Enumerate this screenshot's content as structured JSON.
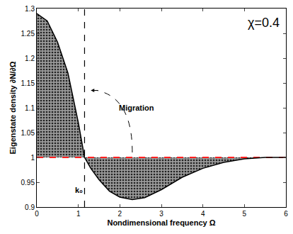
{
  "chart_data": {
    "type": "line",
    "x_label": "Nondimensional frequency Ω",
    "y_label": "Eigenstate density ∂N/∂Ω",
    "x": [
      0,
      0.25,
      0.5,
      0.75,
      1.0,
      1.15,
      1.3,
      1.5,
      1.75,
      2.0,
      2.3,
      2.6,
      3.0,
      3.5,
      4.0,
      4.5,
      5.0,
      5.5,
      6.0
    ],
    "values": [
      1.29,
      1.275,
      1.232,
      1.17,
      1.07,
      1.0,
      0.978,
      0.955,
      0.932,
      0.92,
      0.915,
      0.919,
      0.935,
      0.96,
      0.978,
      0.99,
      0.997,
      1.0,
      1.0
    ],
    "color": "#000000",
    "xlim": [
      0,
      6
    ],
    "ylim": [
      0.9,
      1.3
    ],
    "xticks": [
      0,
      1,
      2,
      3,
      4,
      5,
      6
    ],
    "yticks": [
      0.9,
      0.95,
      1,
      1.05,
      1.1,
      1.15,
      1.2,
      1.25,
      1.3
    ],
    "grid": false,
    "reference_line": {
      "value": 1,
      "color": "#ff2020",
      "line_style": "dash"
    },
    "vline": {
      "value": 1.15,
      "color": "#000000",
      "line_style": "dash"
    },
    "annotations": {
      "chi": "χ=0.4",
      "migration": "Migration",
      "k0": "k₀"
    }
  }
}
